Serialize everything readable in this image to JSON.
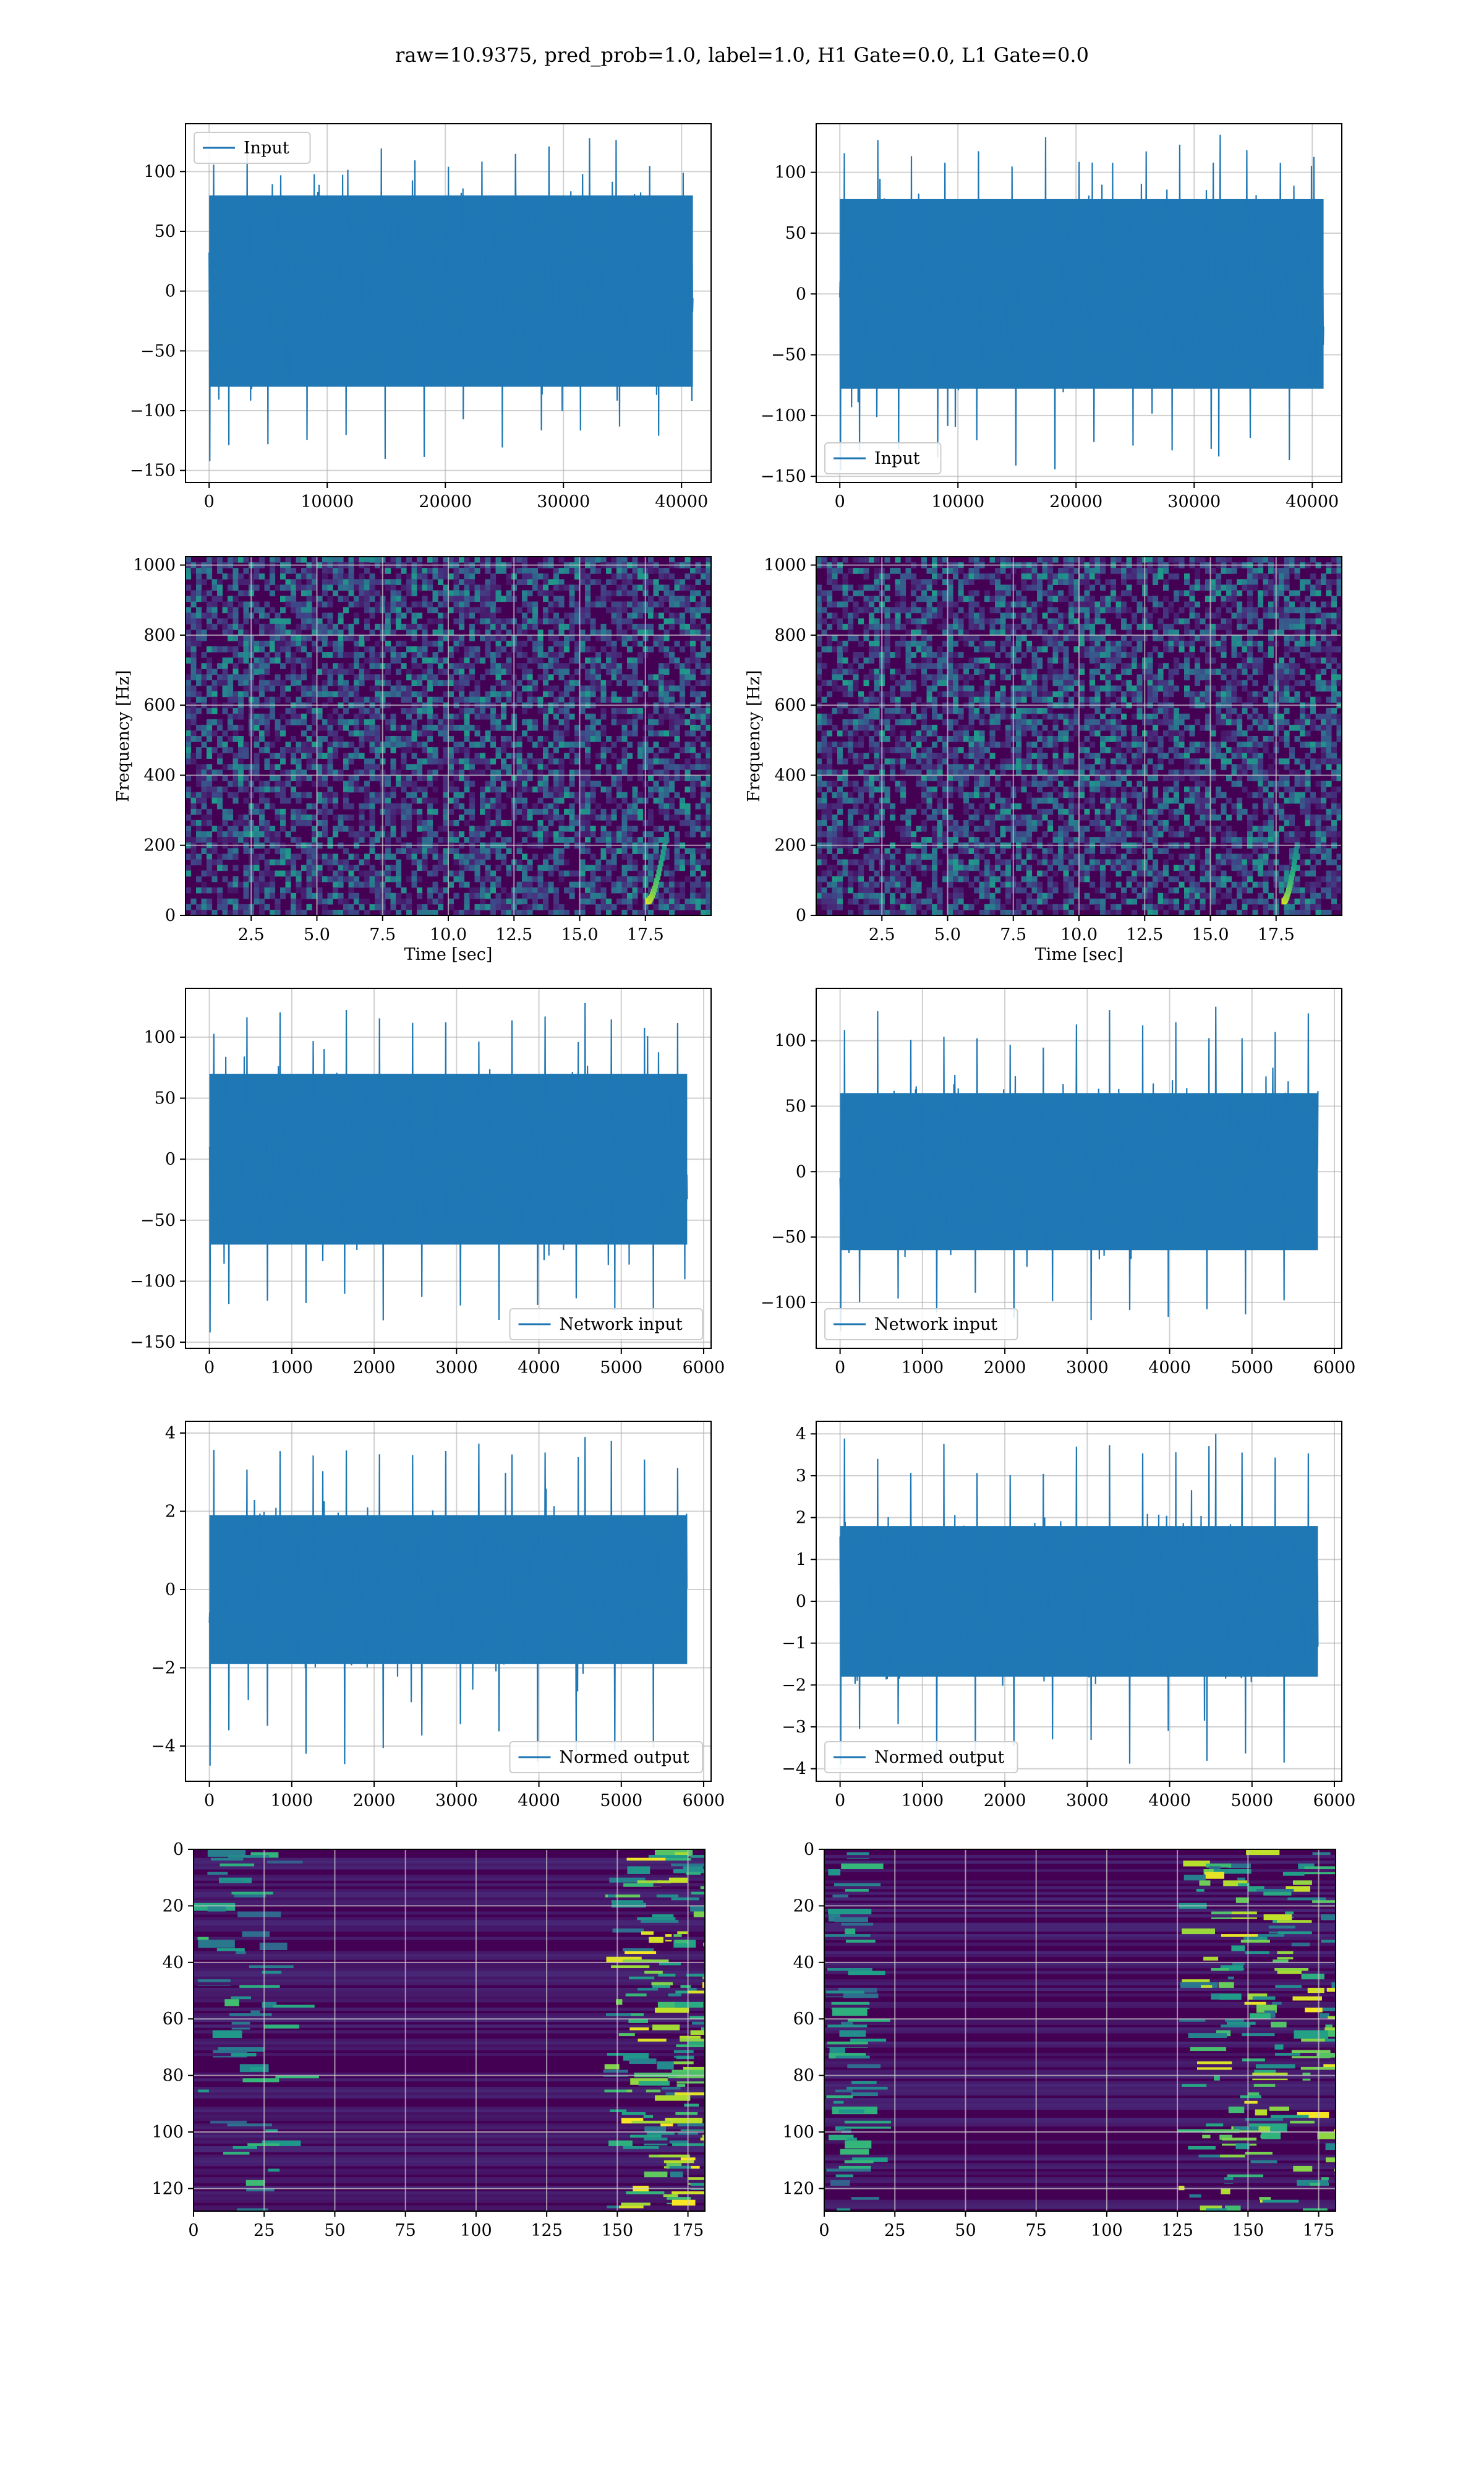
{
  "figure": {
    "title": "raw=10.9375, pred_prob=1.0, label=1.0, H1 Gate=0.0, L1 Gate=0.0",
    "colors": {
      "line": "#1f77b4",
      "grid": "#b0b0b0",
      "spine": "#000000"
    }
  },
  "chart_data": [
    {
      "id": "input-h1",
      "type": "line",
      "title": "",
      "xlabel": "",
      "ylabel": "",
      "xlim": [
        -2000,
        42500
      ],
      "ylim": [
        -160,
        140
      ],
      "xticks": [
        0,
        10000,
        20000,
        30000,
        40000
      ],
      "xtick_labels": [
        "0",
        "10000",
        "20000",
        "30000",
        "40000"
      ],
      "yticks": [
        -150,
        -100,
        -50,
        0,
        50,
        100
      ],
      "ytick_labels": [
        "−150",
        "−100",
        "−50",
        "0",
        "50",
        "100"
      ],
      "grid": true,
      "legend": {
        "placement": "upper-left",
        "entries": [
          "Input"
        ]
      },
      "series": [
        {
          "name": "Input",
          "x_range": [
            0,
            40960
          ],
          "envelope": [
            -80,
            80
          ],
          "peak_range": [
            -142,
            128
          ]
        }
      ]
    },
    {
      "id": "input-l1",
      "type": "line",
      "title": "",
      "xlabel": "",
      "ylabel": "",
      "xlim": [
        -2000,
        42500
      ],
      "ylim": [
        -155,
        140
      ],
      "xticks": [
        0,
        10000,
        20000,
        30000,
        40000
      ],
      "xtick_labels": [
        "0",
        "10000",
        "20000",
        "30000",
        "40000"
      ],
      "yticks": [
        -150,
        -100,
        -50,
        0,
        50,
        100
      ],
      "ytick_labels": [
        "−150",
        "−100",
        "−50",
        "0",
        "50",
        "100"
      ],
      "grid": true,
      "legend": {
        "placement": "lower-left",
        "entries": [
          "Input"
        ]
      },
      "series": [
        {
          "name": "Input",
          "x_range": [
            0,
            40960
          ],
          "envelope": [
            -78,
            78
          ],
          "peak_range": [
            -145,
            131
          ]
        }
      ]
    },
    {
      "id": "spectrogram-h1",
      "type": "heatmap",
      "title": "",
      "xlabel": "Time [sec]",
      "ylabel": "Frequency [Hz]",
      "xlim": [
        0,
        20
      ],
      "ylim": [
        0,
        1024
      ],
      "xticks": [
        2.5,
        5.0,
        7.5,
        10.0,
        12.5,
        15.0,
        17.5
      ],
      "xtick_labels": [
        "2.5",
        "5.0",
        "7.5",
        "10.0",
        "12.5",
        "15.0",
        "17.5"
      ],
      "yticks": [
        0,
        200,
        400,
        600,
        800,
        1000
      ],
      "ytick_labels": [
        "0",
        "200",
        "400",
        "600",
        "800",
        "1000"
      ],
      "grid": true,
      "colormap": "viridis",
      "features": [
        {
          "kind": "chirp",
          "t_start": 17.6,
          "t_end": 18.3,
          "f_start": 40,
          "f_end": 230
        }
      ]
    },
    {
      "id": "spectrogram-l1",
      "type": "heatmap",
      "title": "",
      "xlabel": "Time [sec]",
      "ylabel": "Frequency [Hz]",
      "xlim": [
        0,
        20
      ],
      "ylim": [
        0,
        1024
      ],
      "xticks": [
        2.5,
        5.0,
        7.5,
        10.0,
        12.5,
        15.0,
        17.5
      ],
      "xtick_labels": [
        "2.5",
        "5.0",
        "7.5",
        "10.0",
        "12.5",
        "15.0",
        "17.5"
      ],
      "yticks": [
        0,
        200,
        400,
        600,
        800,
        1000
      ],
      "ytick_labels": [
        "0",
        "200",
        "400",
        "600",
        "800",
        "1000"
      ],
      "grid": true,
      "colormap": "viridis",
      "features": [
        {
          "kind": "chirp",
          "t_start": 17.8,
          "t_end": 18.3,
          "f_start": 40,
          "f_end": 200
        }
      ]
    },
    {
      "id": "network-input-h1",
      "type": "line",
      "title": "",
      "xlabel": "",
      "ylabel": "",
      "xlim": [
        -290,
        6090
      ],
      "ylim": [
        -155,
        140
      ],
      "xticks": [
        0,
        1000,
        2000,
        3000,
        4000,
        5000,
        6000
      ],
      "xtick_labels": [
        "0",
        "1000",
        "2000",
        "3000",
        "4000",
        "5000",
        "6000"
      ],
      "yticks": [
        -150,
        -100,
        -50,
        0,
        50,
        100
      ],
      "ytick_labels": [
        "−150",
        "−100",
        "−50",
        "0",
        "50",
        "100"
      ],
      "grid": true,
      "legend": {
        "placement": "lower-right",
        "entries": [
          "Network input"
        ]
      },
      "series": [
        {
          "name": "Network input",
          "x_range": [
            0,
            5800
          ],
          "envelope": [
            -70,
            70
          ],
          "peak_range": [
            -142,
            128
          ]
        }
      ]
    },
    {
      "id": "network-input-l1",
      "type": "line",
      "title": "",
      "xlabel": "",
      "ylabel": "",
      "xlim": [
        -290,
        6090
      ],
      "ylim": [
        -135,
        140
      ],
      "xticks": [
        0,
        1000,
        2000,
        3000,
        4000,
        5000,
        6000
      ],
      "xtick_labels": [
        "0",
        "1000",
        "2000",
        "3000",
        "4000",
        "5000",
        "6000"
      ],
      "yticks": [
        -100,
        -50,
        0,
        50,
        100
      ],
      "ytick_labels": [
        "−100",
        "−50",
        "0",
        "50",
        "100"
      ],
      "grid": true,
      "legend": {
        "placement": "lower-left",
        "entries": [
          "Network input"
        ]
      },
      "series": [
        {
          "name": "Network input",
          "x_range": [
            0,
            5800
          ],
          "envelope": [
            -60,
            60
          ],
          "peak_range": [
            -122,
            126
          ]
        }
      ]
    },
    {
      "id": "normed-output-h1",
      "type": "line",
      "title": "",
      "xlabel": "",
      "ylabel": "",
      "xlim": [
        -290,
        6090
      ],
      "ylim": [
        -4.9,
        4.3
      ],
      "xticks": [
        0,
        1000,
        2000,
        3000,
        4000,
        5000,
        6000
      ],
      "xtick_labels": [
        "0",
        "1000",
        "2000",
        "3000",
        "4000",
        "5000",
        "6000"
      ],
      "yticks": [
        -4,
        -2,
        0,
        2,
        4
      ],
      "ytick_labels": [
        "−4",
        "−2",
        "0",
        "2",
        "4"
      ],
      "grid": true,
      "legend": {
        "placement": "lower-right",
        "entries": [
          "Normed output"
        ]
      },
      "series": [
        {
          "name": "Normed output",
          "x_range": [
            0,
            5800
          ],
          "envelope": [
            -1.9,
            1.9
          ],
          "peak_range": [
            -4.5,
            3.9
          ]
        }
      ]
    },
    {
      "id": "normed-output-l1",
      "type": "line",
      "title": "",
      "xlabel": "",
      "ylabel": "",
      "xlim": [
        -290,
        6090
      ],
      "ylim": [
        -4.3,
        4.3
      ],
      "xticks": [
        0,
        1000,
        2000,
        3000,
        4000,
        5000,
        6000
      ],
      "xtick_labels": [
        "0",
        "1000",
        "2000",
        "3000",
        "4000",
        "5000",
        "6000"
      ],
      "yticks": [
        -4,
        -3,
        -2,
        -1,
        0,
        1,
        2,
        3,
        4
      ],
      "ytick_labels": [
        "−4",
        "−3",
        "−2",
        "−1",
        "0",
        "1",
        "2",
        "3",
        "4"
      ],
      "grid": true,
      "legend": {
        "placement": "lower-left",
        "entries": [
          "Normed output"
        ]
      },
      "series": [
        {
          "name": "Normed output",
          "x_range": [
            0,
            5800
          ],
          "envelope": [
            -1.8,
            1.8
          ],
          "peak_range": [
            -3.9,
            4.0
          ]
        }
      ]
    },
    {
      "id": "feature-map-h1",
      "type": "heatmap",
      "title": "",
      "xlabel": "",
      "ylabel": "",
      "xlim": [
        0,
        181
      ],
      "ylim": [
        128,
        0
      ],
      "xticks": [
        0,
        25,
        50,
        75,
        100,
        125,
        150,
        175
      ],
      "xtick_labels": [
        "0",
        "25",
        "50",
        "75",
        "100",
        "125",
        "150",
        "175"
      ],
      "yticks": [
        0,
        20,
        40,
        60,
        80,
        100,
        120
      ],
      "ytick_labels": [
        "0",
        "20",
        "40",
        "60",
        "80",
        "100",
        "120"
      ],
      "grid": true,
      "colormap": "viridis",
      "activity": {
        "left_band": [
          0,
          30
        ],
        "right_band": [
          145,
          181
        ]
      }
    },
    {
      "id": "feature-map-l1",
      "type": "heatmap",
      "title": "",
      "xlabel": "",
      "ylabel": "",
      "xlim": [
        0,
        181
      ],
      "ylim": [
        128,
        0
      ],
      "xticks": [
        0,
        25,
        50,
        75,
        100,
        125,
        150,
        175
      ],
      "xtick_labels": [
        "0",
        "25",
        "50",
        "75",
        "100",
        "125",
        "150",
        "175"
      ],
      "yticks": [
        0,
        20,
        40,
        60,
        80,
        100,
        120
      ],
      "ytick_labels": [
        "0",
        "20",
        "40",
        "60",
        "80",
        "100",
        "120"
      ],
      "grid": true,
      "colormap": "viridis",
      "activity": {
        "left_band": [
          0,
          10
        ],
        "right_band": [
          125,
          181
        ]
      }
    }
  ]
}
